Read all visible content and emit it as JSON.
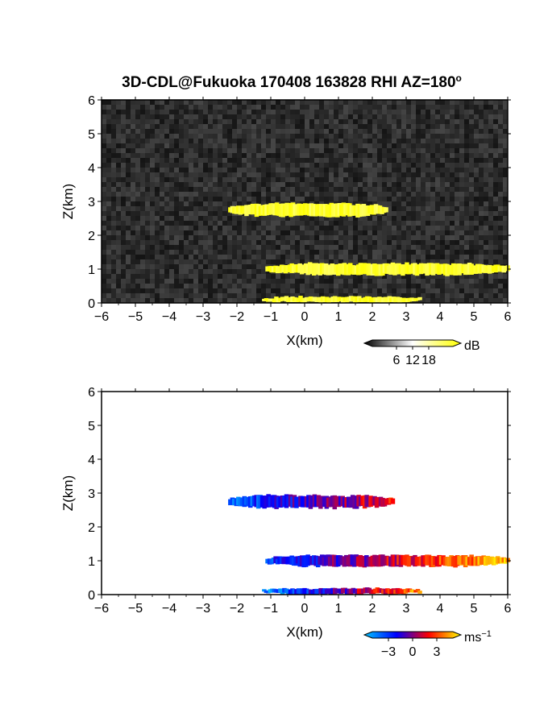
{
  "figure_title": "3D-CDL@Fukuoka 170408 163828 RHI AZ=180",
  "figure_title_degree": "o",
  "chart_data": [
    {
      "type": "heatmap",
      "name": "intensity",
      "title": "3D-CDL@Fukuoka 170408 163828 RHI AZ=180°",
      "xlabel": "X(km)",
      "ylabel": "Z(km)",
      "xlim": [
        -6,
        6
      ],
      "ylim": [
        0,
        6
      ],
      "xticks": [
        -6,
        -5,
        -4,
        -3,
        -2,
        -1,
        0,
        1,
        2,
        3,
        4,
        5,
        6
      ],
      "yticks": [
        0,
        1,
        2,
        3,
        4,
        5,
        6
      ],
      "background": "noise",
      "colorbar": {
        "unit": "dB",
        "ticks": [
          6,
          12,
          18
        ],
        "colors": [
          "#000000",
          "#ffffff",
          "#ffff00"
        ]
      },
      "layers": [
        {
          "x_range": [
            -2.2,
            2.4
          ],
          "z_center": 2.75,
          "thickness": 0.35,
          "value_dB": 20
        },
        {
          "x_range": [
            -1.1,
            6.0
          ],
          "z_center": 1.0,
          "thickness": 0.3,
          "value_dB": 20
        },
        {
          "x_range": [
            -1.2,
            3.4
          ],
          "z_center": 0.1,
          "thickness": 0.15,
          "value_dB": 20
        }
      ]
    },
    {
      "type": "heatmap",
      "name": "velocity",
      "xlabel": "X(km)",
      "ylabel": "Z(km)",
      "xlim": [
        -6,
        6
      ],
      "ylim": [
        0,
        6
      ],
      "xticks": [
        -6,
        -5,
        -4,
        -3,
        -2,
        -1,
        0,
        1,
        2,
        3,
        4,
        5,
        6
      ],
      "yticks": [
        0,
        1,
        2,
        3,
        4,
        5,
        6
      ],
      "background": "#ffffff",
      "colorbar": {
        "unit": "ms",
        "unit_exponent": "-1",
        "ticks": [
          -3,
          0,
          3
        ],
        "colors": [
          "#00c8ff",
          "#0000ff",
          "#ff0000",
          "#ffff00"
        ]
      },
      "layers": [
        {
          "x_range": [
            -2.2,
            2.6
          ],
          "z_center": 2.75,
          "thickness": 0.35,
          "velocity_left": -2,
          "velocity_right": 1
        },
        {
          "x_range": [
            -1.1,
            6.0
          ],
          "z_center": 1.0,
          "thickness": 0.3,
          "velocity_left": -1.5,
          "velocity_right": 2.5
        },
        {
          "x_range": [
            -1.2,
            3.4
          ],
          "z_center": 0.1,
          "thickness": 0.15,
          "velocity_left": -2.5,
          "velocity_right": 2
        }
      ]
    }
  ]
}
